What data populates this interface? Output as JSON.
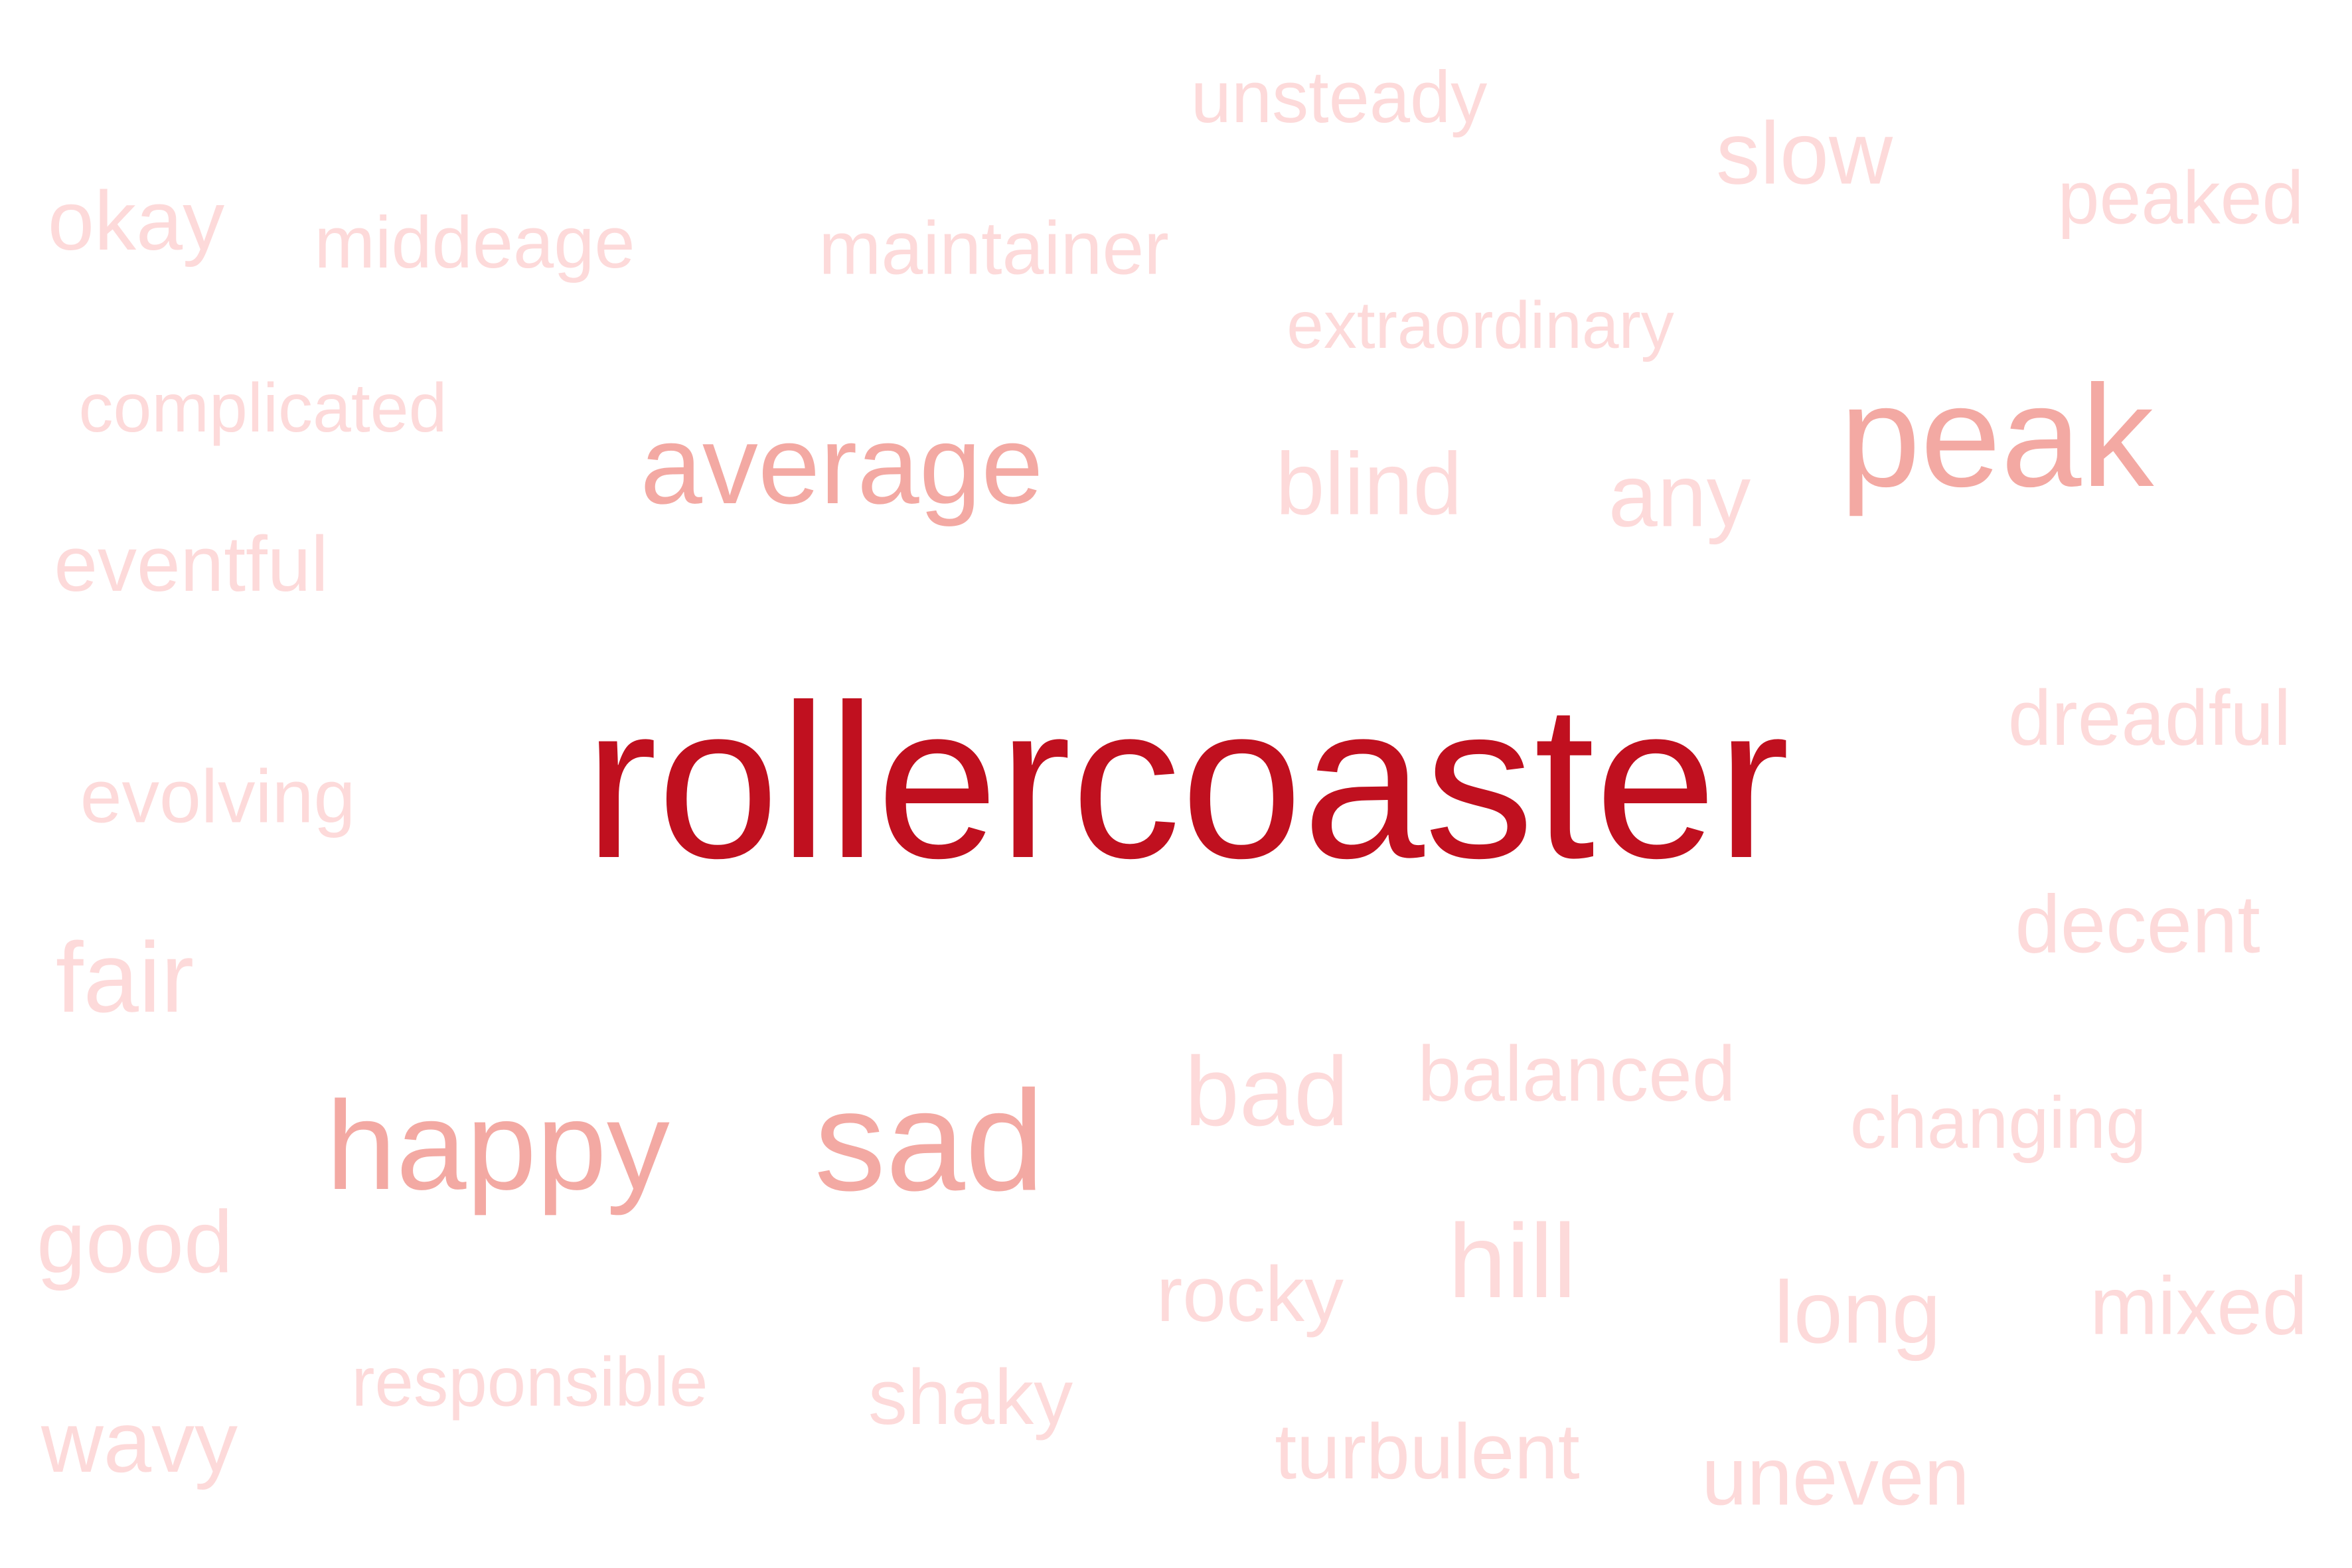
{
  "words": [
    {
      "id": "rollercoaster",
      "text": "rollercoaster",
      "color": "#c0101f"
    },
    {
      "id": "peak",
      "text": "peak",
      "color": "#f3a9a3"
    },
    {
      "id": "average",
      "text": "average",
      "color": "#f3a9a3"
    },
    {
      "id": "happy",
      "text": "happy",
      "color": "#f3a9a3"
    },
    {
      "id": "sad",
      "text": "sad",
      "color": "#f3a9a3"
    },
    {
      "id": "unsteady",
      "text": "unsteady",
      "color": "#fddada"
    },
    {
      "id": "slow",
      "text": "slow",
      "color": "#fddada"
    },
    {
      "id": "peaked",
      "text": "peaked",
      "color": "#fddada"
    },
    {
      "id": "okay",
      "text": "okay",
      "color": "#fddada"
    },
    {
      "id": "middeage",
      "text": "middeage",
      "color": "#fddada"
    },
    {
      "id": "maintainer",
      "text": "maintainer",
      "color": "#fddada"
    },
    {
      "id": "extraordinary",
      "text": "extraordinary",
      "color": "#fddada"
    },
    {
      "id": "complicated",
      "text": "complicated",
      "color": "#fddada"
    },
    {
      "id": "blind",
      "text": "blind",
      "color": "#fddada"
    },
    {
      "id": "any",
      "text": "any",
      "color": "#fddada"
    },
    {
      "id": "eventful",
      "text": "eventful",
      "color": "#fddada"
    },
    {
      "id": "dreadful",
      "text": "dreadful",
      "color": "#fddada"
    },
    {
      "id": "evolving",
      "text": "evolving",
      "color": "#fddada"
    },
    {
      "id": "decent",
      "text": "decent",
      "color": "#fddada"
    },
    {
      "id": "fair",
      "text": "fair",
      "color": "#fddada"
    },
    {
      "id": "bad",
      "text": "bad",
      "color": "#fddada"
    },
    {
      "id": "balanced",
      "text": "balanced",
      "color": "#fddada"
    },
    {
      "id": "changing",
      "text": "changing",
      "color": "#fddada"
    },
    {
      "id": "good",
      "text": "good",
      "color": "#fddada"
    },
    {
      "id": "hill",
      "text": "hill",
      "color": "#fddada"
    },
    {
      "id": "rocky",
      "text": "rocky",
      "color": "#fddada"
    },
    {
      "id": "long",
      "text": "long",
      "color": "#fddada"
    },
    {
      "id": "mixed",
      "text": "mixed",
      "color": "#fddada"
    },
    {
      "id": "responsible",
      "text": "responsible",
      "color": "#fddada"
    },
    {
      "id": "shaky",
      "text": "shaky",
      "color": "#fddada"
    },
    {
      "id": "wavy",
      "text": "wavy",
      "color": "#fddada"
    },
    {
      "id": "turbulent",
      "text": "turbulent",
      "color": "#fddada"
    },
    {
      "id": "uneven",
      "text": "uneven",
      "color": "#fddada"
    }
  ]
}
